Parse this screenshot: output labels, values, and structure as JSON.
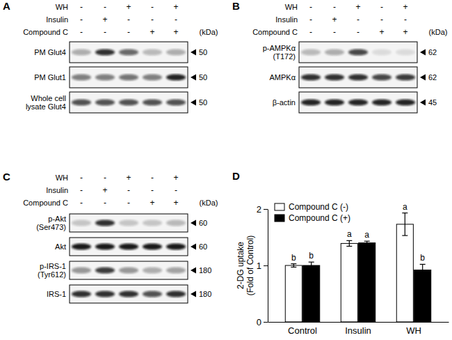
{
  "blot_panels": [
    {
      "label": "A",
      "conditions": [
        {
          "name": "WH",
          "signs": [
            "-",
            "-",
            "+",
            "-",
            "+"
          ]
        },
        {
          "name": "Insulin",
          "signs": [
            "-",
            "+",
            "-",
            "-",
            "-"
          ]
        },
        {
          "name": "Compound C",
          "signs": [
            "-",
            "-",
            "-",
            "+",
            "+"
          ]
        }
      ],
      "unit": "(kDa)",
      "blots": [
        {
          "lines": [
            "PM Glut4"
          ],
          "kda": 50,
          "intensity": [
            0.3,
            0.85,
            0.6,
            0.25,
            0.3
          ]
        },
        {
          "lines": [
            "PM Glut1"
          ],
          "kda": 50,
          "intensity": [
            0.5,
            0.5,
            0.55,
            0.5,
            0.9
          ]
        },
        {
          "lines": [
            "Whole cell",
            "lysate Glut4"
          ],
          "kda": 50,
          "intensity": [
            0.7,
            0.7,
            0.7,
            0.7,
            0.7
          ]
        }
      ]
    },
    {
      "label": "B",
      "conditions": [
        {
          "name": "WH",
          "signs": [
            "-",
            "-",
            "+",
            "-",
            "+"
          ]
        },
        {
          "name": "Insulin",
          "signs": [
            "-",
            "+",
            "-",
            "-",
            "-"
          ]
        },
        {
          "name": "Compound C",
          "signs": [
            "-",
            "-",
            "-",
            "+",
            "+"
          ]
        }
      ],
      "unit": "(kDa)",
      "blots": [
        {
          "lines": [
            "p-AMPKα",
            "(T172)"
          ],
          "kda": 62,
          "intensity": [
            0.25,
            0.3,
            0.75,
            0.1,
            0.1
          ]
        },
        {
          "lines": [
            "AMPKα"
          ],
          "kda": 62,
          "intensity": [
            0.85,
            0.85,
            0.85,
            0.75,
            0.8
          ]
        },
        {
          "lines": [
            "β-actin"
          ],
          "kda": 45,
          "intensity": [
            0.9,
            0.9,
            0.9,
            0.9,
            0.9
          ]
        }
      ]
    },
    {
      "label": "C",
      "conditions": [
        {
          "name": "WH",
          "signs": [
            "-",
            "-",
            "+",
            "-",
            "+"
          ]
        },
        {
          "name": "Insulin",
          "signs": [
            "-",
            "+",
            "-",
            "-",
            "-"
          ]
        },
        {
          "name": "Compound C",
          "signs": [
            "-",
            "-",
            "-",
            "+",
            "+"
          ]
        }
      ],
      "unit": "(kDa)",
      "blots": [
        {
          "lines": [
            "p-Akt",
            "(Ser473)"
          ],
          "kda": 60,
          "intensity": [
            0.2,
            0.85,
            0.2,
            0.2,
            0.25
          ]
        },
        {
          "lines": [
            "Akt"
          ],
          "kda": 60,
          "intensity": [
            0.95,
            0.95,
            0.95,
            0.95,
            0.95
          ]
        },
        {
          "lines": [
            "p-IRS-1",
            "(Tyr612)"
          ],
          "kda": 180,
          "intensity": [
            0.4,
            0.8,
            0.4,
            0.3,
            0.35
          ]
        },
        {
          "lines": [
            "IRS-1"
          ],
          "kda": 180,
          "intensity": [
            0.85,
            0.85,
            0.85,
            0.7,
            0.85
          ]
        }
      ]
    }
  ],
  "chart_label": "D",
  "chart_data": {
    "type": "bar",
    "categories": [
      "Control",
      "Insulin",
      "WH"
    ],
    "y_label": [
      "2-DG uptake",
      "(Fold of Control)"
    ],
    "ylim": [
      0,
      2
    ],
    "yticks": [
      0,
      1,
      2
    ],
    "legend": "upper left",
    "series": [
      {
        "name": "Compound C (-)",
        "color": "#ffffff",
        "values": [
          1.0,
          1.39,
          1.73
        ],
        "errors": [
          0.03,
          0.05,
          0.2
        ],
        "letters": [
          "b",
          "a",
          "a"
        ]
      },
      {
        "name": "Compound C (+)",
        "color": "#000000",
        "values": [
          1.0,
          1.4,
          0.92
        ],
        "errors": [
          0.06,
          0.03,
          0.1
        ],
        "letters": [
          "b",
          "a",
          "b"
        ]
      }
    ]
  }
}
